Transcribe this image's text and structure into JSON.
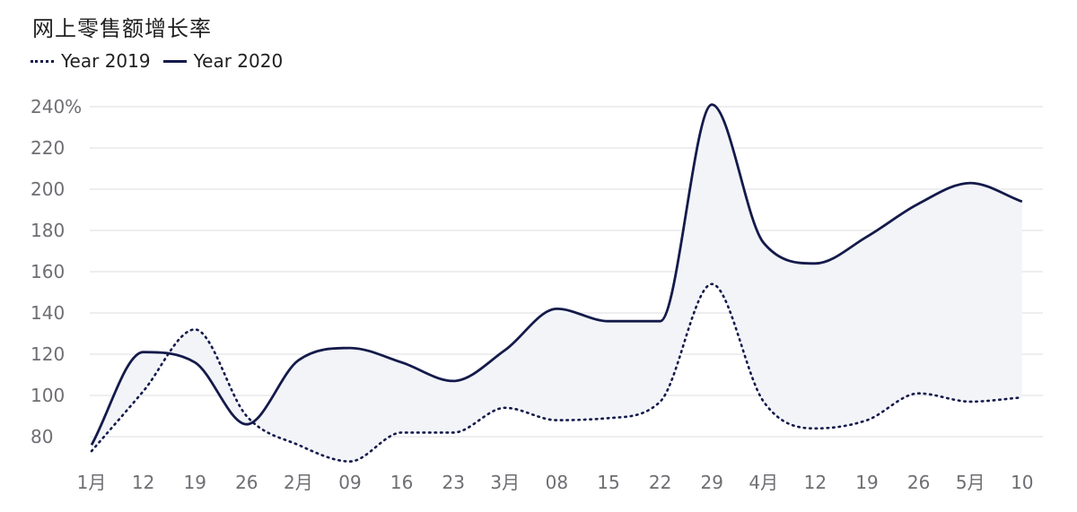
{
  "chart_data": {
    "type": "line",
    "title": "网上零售额增长率",
    "legend_position": "top-left",
    "x_tick_labels": [
      "1月",
      "12",
      "19",
      "26",
      "2月",
      "09",
      "16",
      "23",
      "3月",
      "08",
      "15",
      "22",
      "29",
      "4月",
      "12",
      "19",
      "26",
      "5月",
      "10"
    ],
    "y_tick_labels": [
      "80",
      "100",
      "120",
      "140",
      "160",
      "180",
      "200",
      "220",
      "240%"
    ],
    "y_ticks": [
      80,
      100,
      120,
      140,
      160,
      180,
      200,
      220,
      240
    ],
    "ylim": [
      73,
      242
    ],
    "grid": true,
    "fill_between_series": true,
    "series": [
      {
        "name": "Year 2019",
        "style": "dotted",
        "values": [
          73,
          102,
          132,
          90,
          76,
          68,
          82,
          82,
          94,
          88,
          89,
          97,
          154,
          97,
          84,
          88,
          101,
          97,
          99
        ]
      },
      {
        "name": "Year 2020",
        "style": "solid",
        "values": [
          76,
          121,
          116,
          86,
          117,
          123,
          116,
          107,
          122,
          142,
          136,
          136,
          241,
          174,
          164,
          177,
          193,
          203,
          194
        ]
      }
    ],
    "colors": {
      "line": "#141a4a",
      "fill": "#f2f4f8",
      "grid": "#e4e4e8",
      "tick_text": "#6e6e73"
    }
  }
}
